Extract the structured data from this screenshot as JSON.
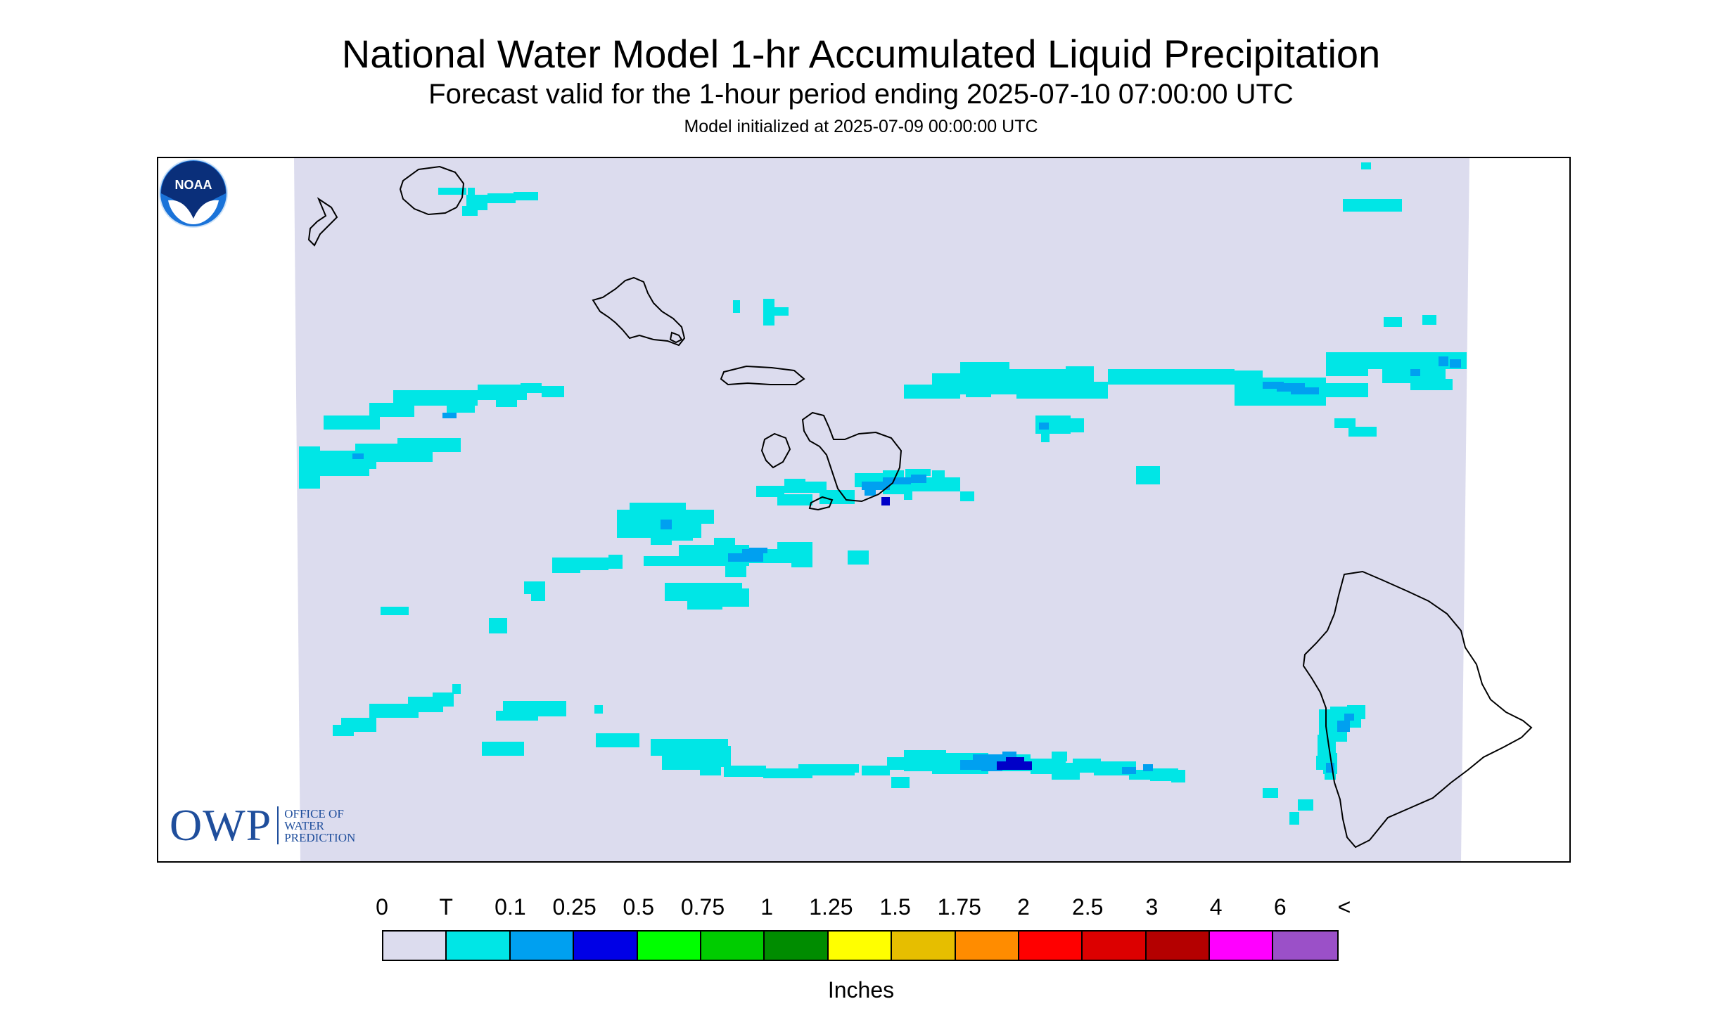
{
  "title": "National Water Model 1-hr Accumulated Liquid Precipitation",
  "subtitle": "Forecast valid for the 1-hour period ending 2025-07-10 07:00:00 UTC",
  "init_line": "Model initialized at 2025-07-09 00:00:00 UTC",
  "logos": {
    "owp_big": "OWP",
    "owp_line1": "OFFICE OF",
    "owp_line2": "WATER",
    "owp_line3": "PREDICTION",
    "noaa": "NOAA"
  },
  "legend": {
    "labels": [
      "0",
      "T",
      "0.1",
      "0.25",
      "0.5",
      "0.75",
      "1",
      "1.25",
      "1.5",
      "1.75",
      "2",
      "2.5",
      "3",
      "4",
      "6",
      "<"
    ],
    "colors": [
      "#dcdcee",
      "#00e6e6",
      "#00a0f0",
      "#0000e6",
      "#00ff00",
      "#00cc00",
      "#008c00",
      "#ffff00",
      "#e6be00",
      "#ff8c00",
      "#ff0000",
      "#dc0000",
      "#b40000",
      "#ff00ff",
      "#9b50c8"
    ],
    "units": "Inches"
  },
  "colors": {
    "domain_background": "#dcdcee",
    "trace": "#00e6e6",
    "light": "#00a0f0",
    "heavy": "#0000c8",
    "coastline": "#000000"
  }
}
